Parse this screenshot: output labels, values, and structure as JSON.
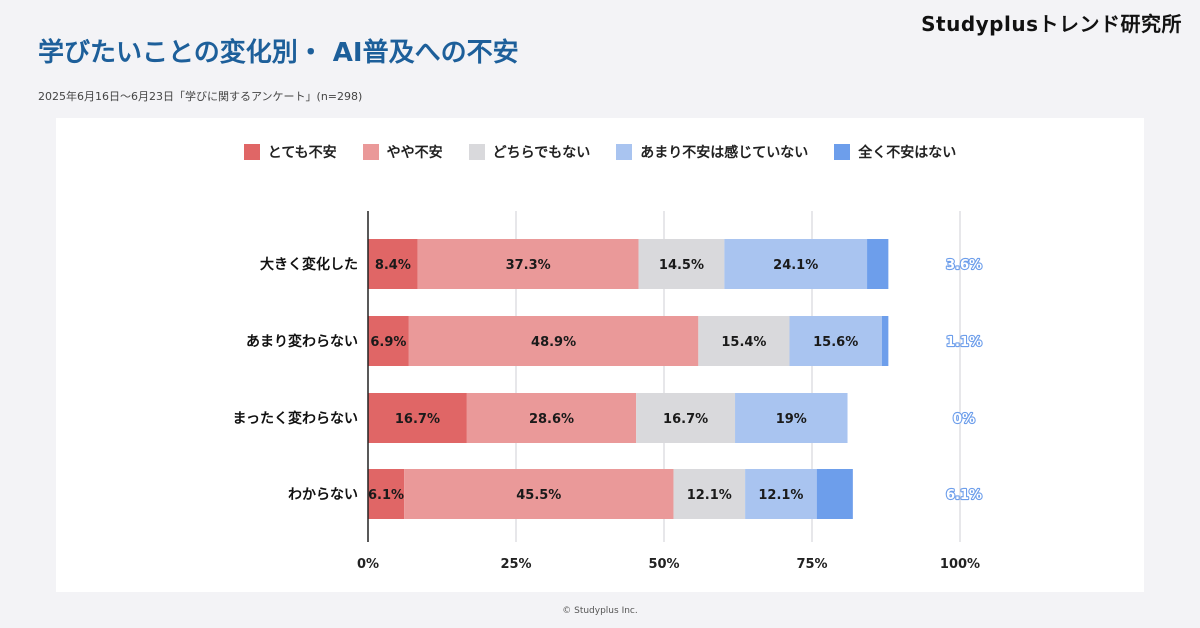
{
  "header": {
    "brand": "Studyplusトレンド研究所",
    "title": "学びたいことの変化別・ AI普及への不安",
    "subtitle": "2025年6月16日～6月23日「学びに関するアンケート」(n=298)"
  },
  "footer": {
    "copyright": "© Studyplus Inc."
  },
  "chart_data": {
    "type": "bar",
    "orientation": "horizontal",
    "stacked": "percent",
    "categories": [
      "大きく変化した",
      "あまり変わらない",
      "まったく変わらない",
      "わからない"
    ],
    "series": [
      {
        "name": "とても不安",
        "color": "#e06666",
        "values": [
          8.4,
          6.9,
          16.7,
          6.1
        ],
        "labels": [
          "8.4%",
          "6.9%",
          "16.7%",
          "6.1%"
        ]
      },
      {
        "name": "やや不安",
        "color": "#ea9999",
        "values": [
          37.3,
          48.9,
          28.6,
          45.5
        ],
        "labels": [
          "37.3%",
          "48.9%",
          "28.6%",
          "45.5%"
        ]
      },
      {
        "name": "どちらでもない",
        "color": "#d9d9dc",
        "values": [
          14.5,
          15.4,
          16.7,
          12.1
        ],
        "labels": [
          "14.5%",
          "15.4%",
          "16.7%",
          "12.1%"
        ]
      },
      {
        "name": "あまり不安は感じていない",
        "color": "#a9c4f0",
        "values": [
          24.1,
          15.6,
          19,
          12.1
        ],
        "labels": [
          "24.1%",
          "15.6%",
          "19%",
          "12.1%"
        ]
      },
      {
        "name": "全く不安はない",
        "color": "#6d9eeb",
        "values": [
          3.6,
          1.1,
          0,
          6.1
        ],
        "labels": [
          "3.6%",
          "1.1%",
          "0%",
          "6.1%"
        ]
      }
    ],
    "xticks": [
      "0%",
      "25%",
      "50%",
      "75%",
      "100%"
    ],
    "xlim": [
      0,
      100
    ],
    "grid": true,
    "legend_position": "top"
  }
}
